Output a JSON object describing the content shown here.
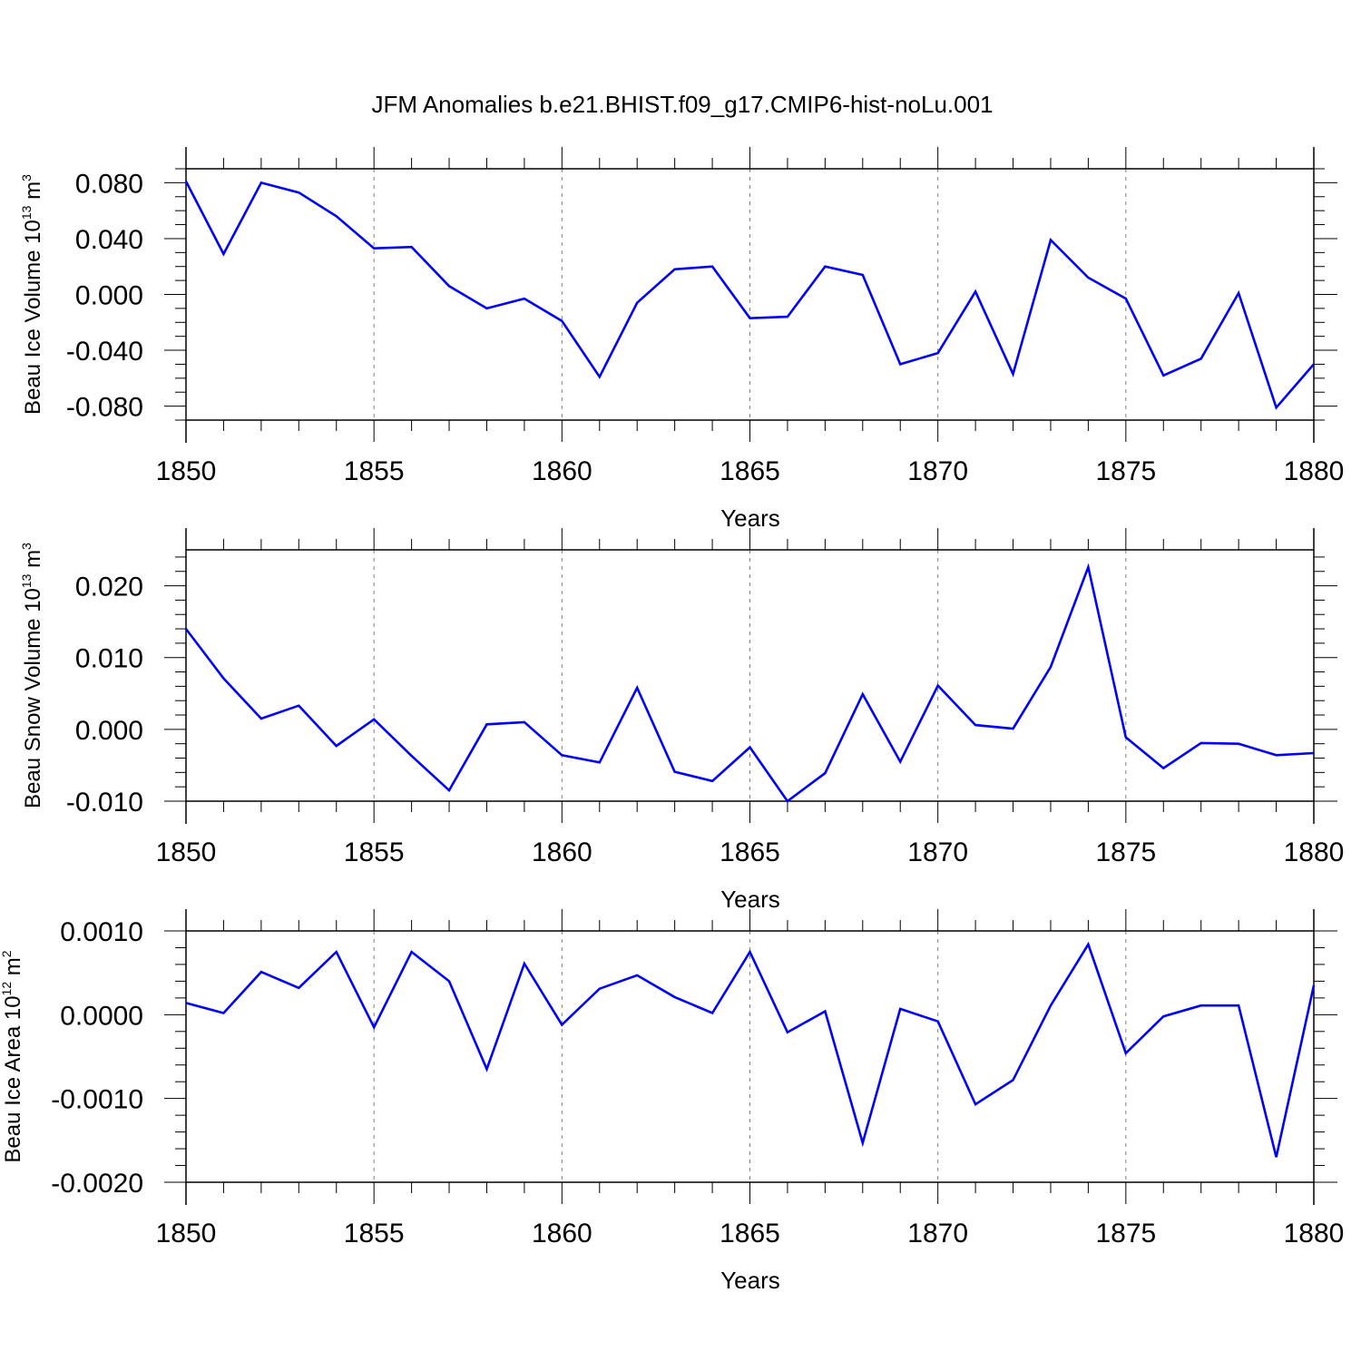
{
  "title": "JFM Anomalies b.e21.BHIST.f09_g17.CMIP6-hist-noLu.001",
  "colors": {
    "series": "#0000ff",
    "axes": "#000000",
    "grid": "#808080",
    "background": "#ffffff"
  },
  "chart_data": [
    {
      "type": "line",
      "title": "",
      "ylabel": "Beau Ice Volume 10",
      "ylabel_exponent": "13",
      "ylabel_unit": " m",
      "ylabel_unit_exponent": "3",
      "xlabel": "Years",
      "xlim": [
        1850,
        1880
      ],
      "ylim": [
        -0.09,
        0.09
      ],
      "xticks": [
        1850,
        1855,
        1860,
        1865,
        1870,
        1875,
        1880
      ],
      "xtick_labels": [
        "1850",
        "1855",
        "1860",
        "1865",
        "1870",
        "1875",
        "1880"
      ],
      "yticks": [
        -0.08,
        -0.04,
        0.0,
        0.04,
        0.08
      ],
      "ytick_labels": [
        "-0.080",
        "-0.040",
        "0.000",
        "0.040",
        "0.080"
      ],
      "y_minor_step": 0.01,
      "grid": "vertical dashed at major x ticks",
      "series": [
        {
          "name": "Beau Ice Volume",
          "x": [
            1850,
            1851,
            1852,
            1853,
            1854,
            1855,
            1856,
            1857,
            1858,
            1859,
            1860,
            1861,
            1862,
            1863,
            1864,
            1865,
            1866,
            1867,
            1868,
            1869,
            1870,
            1871,
            1872,
            1873,
            1874,
            1875,
            1876,
            1877,
            1878,
            1879,
            1880
          ],
          "values": [
            0.081,
            0.029,
            0.08,
            0.073,
            0.056,
            0.033,
            0.034,
            0.006,
            -0.01,
            -0.003,
            -0.019,
            -0.059,
            -0.006,
            0.018,
            0.02,
            -0.017,
            -0.016,
            0.02,
            0.014,
            -0.05,
            -0.042,
            0.002,
            -0.057,
            0.039,
            0.012,
            -0.003,
            -0.058,
            -0.046,
            0.001,
            -0.081,
            -0.05
          ]
        }
      ]
    },
    {
      "type": "line",
      "title": "",
      "ylabel": "Beau Snow Volume 10",
      "ylabel_exponent": "13",
      "ylabel_unit": " m",
      "ylabel_unit_exponent": "3",
      "xlabel": "Years",
      "xlim": [
        1850,
        1880
      ],
      "ylim": [
        -0.01,
        0.025
      ],
      "xticks": [
        1850,
        1855,
        1860,
        1865,
        1870,
        1875,
        1880
      ],
      "xtick_labels": [
        "1850",
        "1855",
        "1860",
        "1865",
        "1870",
        "1875",
        "1880"
      ],
      "yticks": [
        -0.01,
        0.0,
        0.01,
        0.02
      ],
      "ytick_labels": [
        "-0.010",
        "0.000",
        "0.010",
        "0.020"
      ],
      "y_minor_step": 0.002,
      "grid": "vertical dashed at major x ticks",
      "series": [
        {
          "name": "Beau Snow Volume",
          "x": [
            1850,
            1851,
            1852,
            1853,
            1854,
            1855,
            1856,
            1857,
            1858,
            1859,
            1860,
            1861,
            1862,
            1863,
            1864,
            1865,
            1866,
            1867,
            1868,
            1869,
            1870,
            1871,
            1872,
            1873,
            1874,
            1875,
            1876,
            1877,
            1878,
            1879,
            1880
          ],
          "values": [
            0.014,
            0.0071,
            0.0015,
            0.0033,
            -0.0023,
            0.0014,
            -0.0037,
            -0.0085,
            0.0007,
            0.001,
            -0.0036,
            -0.0046,
            0.0058,
            -0.0059,
            -0.0072,
            -0.0025,
            -0.01,
            -0.0061,
            0.0049,
            -0.0045,
            0.0061,
            0.0006,
            0.0001,
            0.0087,
            0.0226,
            -0.0011,
            -0.0054,
            -0.0019,
            -0.002,
            -0.0036,
            -0.0033
          ]
        }
      ]
    },
    {
      "type": "line",
      "title": "",
      "ylabel": "Beau Ice Area 10",
      "ylabel_exponent": "12",
      "ylabel_unit": " m",
      "ylabel_unit_exponent": "2",
      "xlabel": "Years",
      "xlim": [
        1850,
        1880
      ],
      "ylim": [
        -0.002,
        0.001
      ],
      "xticks": [
        1850,
        1855,
        1860,
        1865,
        1870,
        1875,
        1880
      ],
      "xtick_labels": [
        "1850",
        "1855",
        "1860",
        "1865",
        "1870",
        "1875",
        "1880"
      ],
      "yticks": [
        -0.002,
        -0.001,
        0.0,
        0.001
      ],
      "ytick_labels": [
        "-0.0020",
        "-0.0010",
        "0.0000",
        "0.0010"
      ],
      "y_minor_step": 0.0002,
      "grid": "vertical dashed at major x ticks",
      "series": [
        {
          "name": "Beau Ice Area",
          "x": [
            1850,
            1851,
            1852,
            1853,
            1854,
            1855,
            1856,
            1857,
            1858,
            1859,
            1860,
            1861,
            1862,
            1863,
            1864,
            1865,
            1866,
            1867,
            1868,
            1869,
            1870,
            1871,
            1872,
            1873,
            1874,
            1875,
            1876,
            1877,
            1878,
            1879,
            1880
          ],
          "values": [
            0.00014,
            2e-05,
            0.00051,
            0.00032,
            0.00075,
            -0.00015,
            0.00075,
            0.0004,
            -0.00065,
            0.00061,
            -0.00012,
            0.00031,
            0.00047,
            0.00021,
            2e-05,
            0.00075,
            -0.00021,
            4e-05,
            -0.00153,
            7e-05,
            -8e-05,
            -0.00107,
            -0.00078,
            0.00011,
            0.00084,
            -0.00046,
            -2e-05,
            0.00011,
            0.00011,
            -0.0017,
            0.00035
          ]
        }
      ]
    }
  ]
}
